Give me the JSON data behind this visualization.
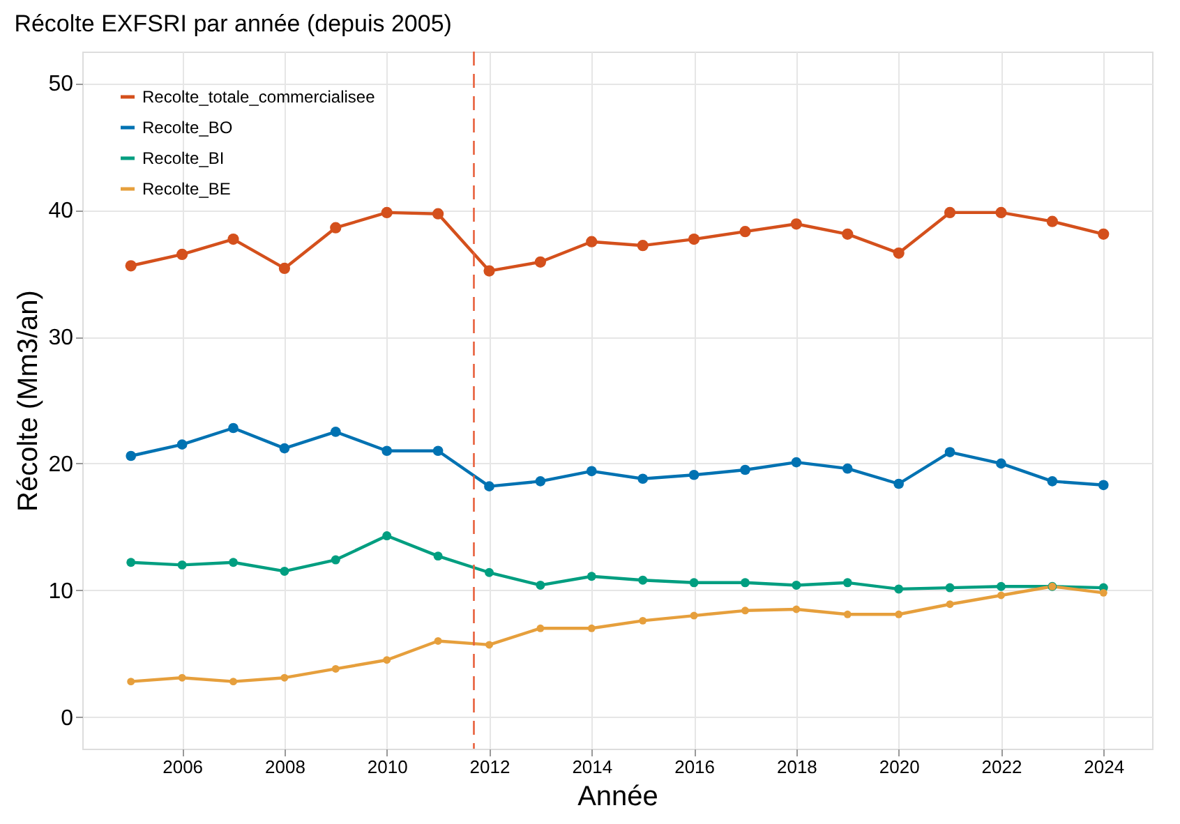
{
  "chart_data": {
    "type": "line",
    "title": "Récolte EXFSRI par année (depuis 2005)",
    "xlabel": "Année",
    "ylabel": "Récolte (Mm3/an)",
    "x": [
      2005,
      2006,
      2007,
      2008,
      2009,
      2010,
      2011,
      2012,
      2013,
      2014,
      2015,
      2016,
      2017,
      2018,
      2019,
      2020,
      2021,
      2022,
      2023,
      2024
    ],
    "series": [
      {
        "name": "Recolte_totale_commercialisee",
        "color": "#d4501c",
        "values": [
          35.6,
          36.5,
          37.7,
          35.4,
          38.6,
          39.8,
          39.7,
          35.2,
          35.9,
          37.5,
          37.2,
          37.7,
          38.3,
          38.9,
          38.1,
          36.6,
          39.8,
          39.8,
          39.1,
          38.1
        ]
      },
      {
        "name": "Recolte_BO",
        "color": "#0072b2",
        "values": [
          20.6,
          21.5,
          22.8,
          21.2,
          22.5,
          21.0,
          21.0,
          18.2,
          18.6,
          19.4,
          18.8,
          19.1,
          19.5,
          20.1,
          19.6,
          18.4,
          20.9,
          20.0,
          18.6,
          18.3
        ]
      },
      {
        "name": "Recolte_BI",
        "color": "#009e80",
        "values": [
          12.2,
          12.0,
          12.2,
          11.5,
          12.4,
          14.3,
          12.7,
          11.4,
          10.4,
          11.1,
          10.8,
          10.6,
          10.6,
          10.4,
          10.6,
          10.1,
          10.2,
          10.3,
          10.3,
          10.2
        ]
      },
      {
        "name": "Recolte_BE",
        "color": "#e69f3c",
        "values": [
          2.8,
          3.1,
          2.8,
          3.1,
          3.8,
          4.5,
          6.0,
          5.7,
          7.0,
          7.0,
          7.6,
          8.0,
          8.4,
          8.5,
          8.1,
          8.1,
          8.9,
          9.6,
          10.3,
          9.8
        ]
      }
    ],
    "xlim": [
      2004.05,
      2024.95
    ],
    "xticks": [
      2006,
      2008,
      2010,
      2012,
      2014,
      2016,
      2018,
      2020,
      2022,
      2024
    ],
    "ylim": [
      -2.5,
      52.5
    ],
    "yticks": [
      0,
      10,
      20,
      30,
      40,
      50
    ],
    "ref_lines": [
      {
        "axis": "x",
        "value": 2011.7,
        "color": "#e8603c",
        "line_style": "dashed"
      }
    ],
    "grid": true,
    "legend": "top left",
    "marker": "circle",
    "line_style": "solid"
  }
}
